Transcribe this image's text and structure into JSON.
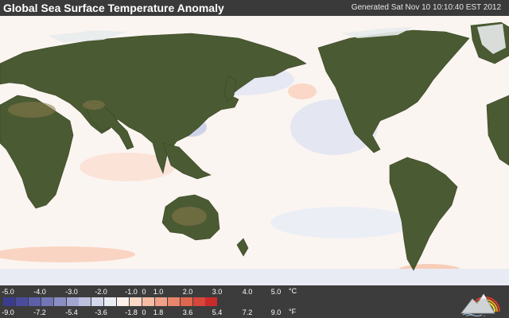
{
  "title": "Global Sea Surface Temperature Anomaly",
  "generated": "Generated Sat Nov 10 10:10:40 EST 2012",
  "legend": {
    "unit_c": "°C",
    "unit_f": "°F",
    "celsius_ticks": [
      "-5.0",
      "-4.0",
      "-3.0",
      "-2.0",
      "-1.0",
      "0",
      "1.0",
      "2.0",
      "3.0",
      "4.0",
      "5.0"
    ],
    "fahrenheit_ticks": [
      "-9.0",
      "-7.2",
      "-5.4",
      "-3.6",
      "-1.8",
      "0",
      "1.8",
      "3.6",
      "5.4",
      "7.2",
      "9.0"
    ],
    "colors": [
      "#3b3c8f",
      "#4a4c9b",
      "#5d5fa8",
      "#7376b6",
      "#8b8dc3",
      "#a3a6d1",
      "#bcbfde",
      "#d5d7ea",
      "#ebedf5",
      "#fdf1ea",
      "#fbd8c7",
      "#f6bda5",
      "#f0a188",
      "#e8856b",
      "#df6650",
      "#d6463a",
      "#c92a2a"
    ]
  },
  "logo_icon": "weather-mountain-rainbow-icon"
}
